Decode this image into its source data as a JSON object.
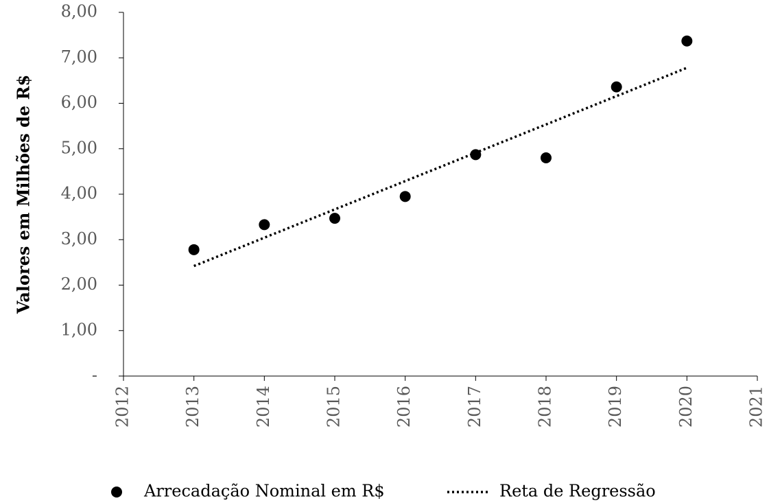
{
  "chart_data": {
    "type": "scatter",
    "y_label": "Valores em Milhões de R$",
    "xlim": [
      2012,
      2021
    ],
    "xticks": [
      2012,
      2013,
      2014,
      2015,
      2016,
      2017,
      2018,
      2019,
      2020,
      2021
    ],
    "ylim": [
      0,
      8
    ],
    "yticks": [
      {
        "value": 0,
        "label": "-"
      },
      {
        "value": 1,
        "label": "1,00"
      },
      {
        "value": 2,
        "label": "2,00"
      },
      {
        "value": 3,
        "label": "3,00"
      },
      {
        "value": 4,
        "label": "4,00"
      },
      {
        "value": 5,
        "label": "5,00"
      },
      {
        "value": 6,
        "label": "6,00"
      },
      {
        "value": 7,
        "label": "7,00"
      },
      {
        "value": 8,
        "label": "8,00"
      }
    ],
    "series": [
      {
        "name": "Arrecadação Nominal em R$",
        "color": "#000000",
        "style": "markers",
        "x": [
          2013,
          2014,
          2015,
          2016,
          2017,
          2018,
          2019,
          2020
        ],
        "values": [
          2.78,
          3.33,
          3.47,
          3.95,
          4.87,
          4.8,
          6.36,
          7.37
        ]
      },
      {
        "name": "Reta de Regressão",
        "color": "#000000",
        "style": "dotted",
        "x": [
          2013,
          2020
        ],
        "values": [
          2.42,
          6.78
        ]
      }
    ]
  }
}
